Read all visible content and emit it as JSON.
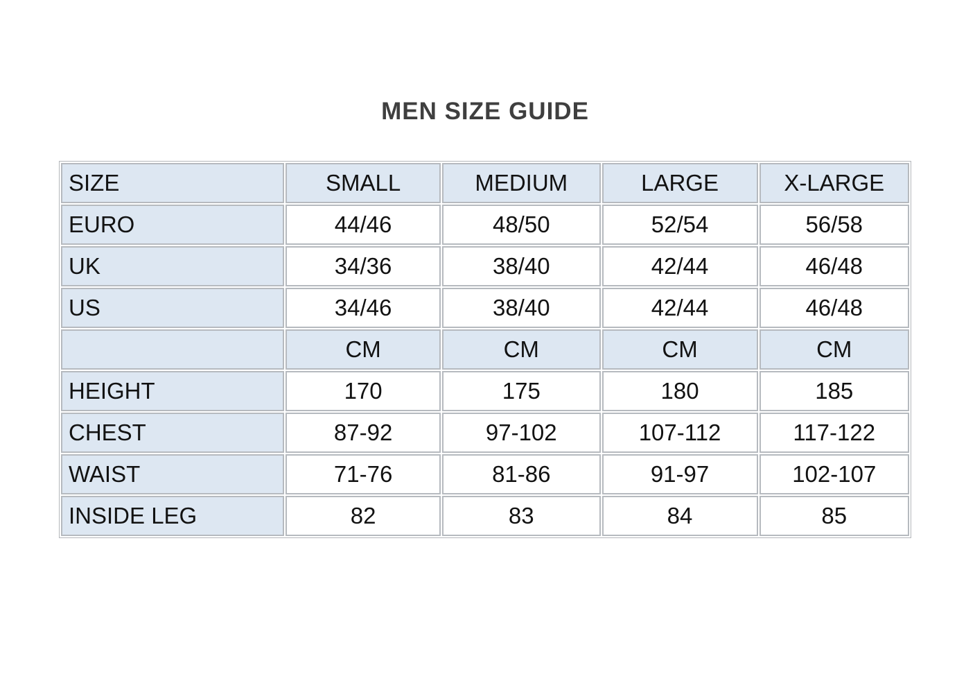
{
  "page": {
    "title": "MEN SIZE GUIDE"
  },
  "colors": {
    "header_bg": "#dde7f2",
    "cell_bg": "#ffffff",
    "border": "#b6babf",
    "title_text": "#3f3f3f",
    "cell_text": "#121212"
  },
  "table": {
    "columns": [
      "SIZE",
      "SMALL",
      "MEDIUM",
      "LARGE",
      "X-LARGE"
    ],
    "rows": [
      {
        "label": "EURO",
        "unit_row": false,
        "values": [
          "44/46",
          "48/50",
          "52/54",
          "56/58"
        ]
      },
      {
        "label": "UK",
        "unit_row": false,
        "values": [
          "34/36",
          "38/40",
          "42/44",
          "46/48"
        ]
      },
      {
        "label": "US",
        "unit_row": false,
        "values": [
          "34/46",
          "38/40",
          "42/44",
          "46/48"
        ]
      },
      {
        "label": "",
        "unit_row": true,
        "values": [
          "CM",
          "CM",
          "CM",
          "CM"
        ]
      },
      {
        "label": "HEIGHT",
        "unit_row": false,
        "values": [
          "170",
          "175",
          "180",
          "185"
        ]
      },
      {
        "label": "CHEST",
        "unit_row": false,
        "values": [
          "87-92",
          "97-102",
          "107-112",
          "117-122"
        ]
      },
      {
        "label": "WAIST",
        "unit_row": false,
        "values": [
          "71-76",
          "81-86",
          "91-97",
          "102-107"
        ]
      },
      {
        "label": "INSIDE LEG",
        "unit_row": false,
        "values": [
          "82",
          "83",
          "84",
          "85"
        ]
      }
    ]
  }
}
